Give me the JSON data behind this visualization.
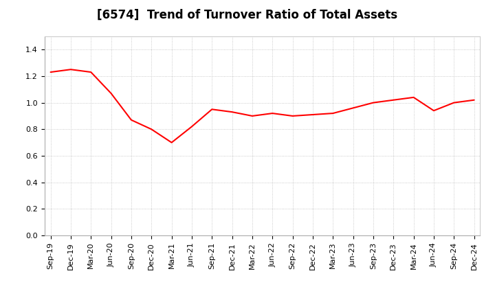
{
  "title": "[6574]  Trend of Turnover Ratio of Total Assets",
  "x_labels": [
    "Sep-19",
    "Dec-19",
    "Mar-20",
    "Jun-20",
    "Sep-20",
    "Dec-20",
    "Mar-21",
    "Jun-21",
    "Sep-21",
    "Dec-21",
    "Mar-22",
    "Jun-22",
    "Sep-22",
    "Dec-22",
    "Mar-23",
    "Jun-23",
    "Sep-23",
    "Dec-23",
    "Mar-24",
    "Jun-24",
    "Sep-24",
    "Dec-24"
  ],
  "y_values": [
    1.23,
    1.25,
    1.23,
    1.07,
    0.87,
    0.8,
    0.7,
    0.82,
    0.95,
    0.93,
    0.9,
    0.92,
    0.9,
    0.91,
    0.92,
    0.96,
    1.0,
    1.02,
    1.04,
    0.94,
    1.0,
    1.02
  ],
  "line_color": "#FF0000",
  "line_width": 1.5,
  "ylim": [
    0.0,
    1.5
  ],
  "yticks": [
    0.0,
    0.2,
    0.4,
    0.6,
    0.8,
    1.0,
    1.2,
    1.4
  ],
  "background_color": "#ffffff",
  "plot_bg_color": "#ffffff",
  "grid_color": "#bbbbbb",
  "title_fontsize": 12,
  "tick_fontsize": 8
}
